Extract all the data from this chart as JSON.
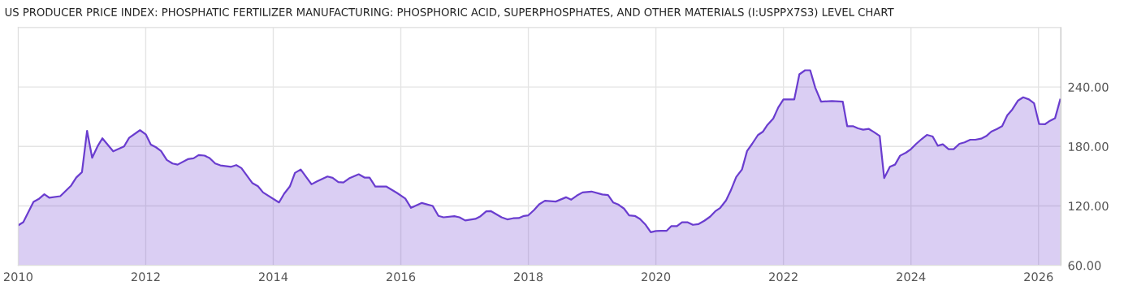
{
  "chart_data": {
    "type": "area",
    "title": "US PRODUCER PRICE INDEX: PHOSPHATIC FERTILIZER MANUFACTURING: PHOSPHORIC ACID, SUPERPHOSPHATES, AND OTHER MATERIALS (I:USPPX7S3) LEVEL CHART",
    "x": [
      2010.0,
      2010.08,
      2010.24,
      2010.32,
      2010.41,
      2010.49,
      2010.66,
      2010.83,
      2010.91,
      2011.0,
      2011.08,
      2011.16,
      2011.25,
      2011.32,
      2011.49,
      2011.66,
      2011.74,
      2011.91,
      2012.0,
      2012.08,
      2012.16,
      2012.24,
      2012.33,
      2012.42,
      2012.5,
      2012.66,
      2012.75,
      2012.83,
      2012.92,
      2013.0,
      2013.09,
      2013.17,
      2013.34,
      2013.42,
      2013.5,
      2013.67,
      2013.76,
      2013.84,
      2014.09,
      2014.17,
      2014.26,
      2014.34,
      2014.43,
      2014.6,
      2014.68,
      2014.85,
      2014.93,
      2015.02,
      2015.1,
      2015.19,
      2015.34,
      2015.43,
      2015.51,
      2015.6,
      2015.77,
      2015.94,
      2016.07,
      2016.16,
      2016.33,
      2016.5,
      2016.59,
      2016.67,
      2016.84,
      2016.92,
      2017.01,
      2017.17,
      2017.25,
      2017.34,
      2017.41,
      2017.58,
      2017.67,
      2017.76,
      2017.85,
      2017.93,
      2018.0,
      2018.09,
      2018.17,
      2018.26,
      2018.43,
      2018.59,
      2018.67,
      2018.76,
      2018.85,
      2018.99,
      2019.16,
      2019.25,
      2019.33,
      2019.41,
      2019.5,
      2019.58,
      2019.67,
      2019.75,
      2019.84,
      2019.92,
      2020.0,
      2020.08,
      2020.17,
      2020.24,
      2020.33,
      2020.41,
      2020.5,
      2020.58,
      2020.67,
      2020.76,
      2020.85,
      2020.93,
      2021.01,
      2021.1,
      2021.17,
      2021.26,
      2021.35,
      2021.43,
      2021.51,
      2021.6,
      2021.68,
      2021.75,
      2021.84,
      2021.92,
      2022.0,
      2022.17,
      2022.25,
      2022.34,
      2022.42,
      2022.5,
      2022.59,
      2022.76,
      2022.93,
      2023.0,
      2023.09,
      2023.17,
      2023.25,
      2023.34,
      2023.42,
      2023.51,
      2023.58,
      2023.67,
      2023.75,
      2023.83,
      2023.92,
      2024.0,
      2024.08,
      2024.17,
      2024.25,
      2024.34,
      2024.42,
      2024.5,
      2024.59,
      2024.67,
      2024.76,
      2024.84,
      2024.93,
      2025.01,
      2025.1,
      2025.18,
      2025.26,
      2025.35,
      2025.43,
      2025.51,
      2025.59,
      2025.68,
      2025.76,
      2025.85,
      2025.93,
      2026.01,
      2026.1,
      2026.18,
      2026.26,
      2026.34
    ],
    "series": [
      {
        "color": "#6a3dcf",
        "values": [
          100.4,
          103.6,
          124.1,
          126.9,
          131.7,
          128.2,
          129.8,
          140.5,
          148.6,
          154.1,
          195.8,
          168.6,
          180.8,
          188.2,
          175.1,
          180,
          188.7,
          196.4,
          192.3,
          181.9,
          179.2,
          175.4,
          166.4,
          162.8,
          161.7,
          167.2,
          168.0,
          171.3,
          170.8,
          168.3,
          162.8,
          160.9,
          159.5,
          161.2,
          158.2,
          143.2,
          139.9,
          133.6,
          123.5,
          132.3,
          139.6,
          153.3,
          156.8,
          141.8,
          144.5,
          149.7,
          148.4,
          144.0,
          143.7,
          147.8,
          151.9,
          148.6,
          148.6,
          139.6,
          139.6,
          133.1,
          127.4,
          118.1,
          123.0,
          120.0,
          109.9,
          108.5,
          109.6,
          108.5,
          105.3,
          106.9,
          109.6,
          114.5,
          114.8,
          108.5,
          106.4,
          107.5,
          107.7,
          109.9,
          110.5,
          115.9,
          121.6,
          125.2,
          124.4,
          128.7,
          126.3,
          130.4,
          133.6,
          134.5,
          131.5,
          130.9,
          123.5,
          121.4,
          117.3,
          110.5,
          109.9,
          106.9,
          100.9,
          93.5,
          94.6,
          94.9,
          94.9,
          99.5,
          99.5,
          103.4,
          103.4,
          100.9,
          101.7,
          105.0,
          109.1,
          114.5,
          118.1,
          125.5,
          134.9,
          149.2,
          156.8,
          175.4,
          182.7,
          191.5,
          195.0,
          201.8,
          208.1,
          219.5,
          227.5,
          227.5,
          252.8,
          256.9,
          256.9,
          239.2,
          225.3,
          225.8,
          225.3,
          200.5,
          200.5,
          198.3,
          196.9,
          197.7,
          194.5,
          190.6,
          148.1,
          159.5,
          161.7,
          170.7,
          173.7,
          177.3,
          182.5,
          187.6,
          191.7,
          190.1,
          180.8,
          182.2,
          177.3,
          177.3,
          182.7,
          184.1,
          186.8,
          186.8,
          187.9,
          190.4,
          195.0,
          197.7,
          200.5,
          211.4,
          217.4,
          226.4,
          229.6,
          227.5,
          223.6,
          202.6,
          202.4,
          205.9,
          208.6,
          227.2
        ]
      }
    ],
    "xlim": [
      2010.0,
      2026.35
    ],
    "xticks": [
      2010,
      2012,
      2014,
      2016,
      2018,
      2020,
      2022,
      2024,
      2026
    ],
    "ylim": [
      60,
      300
    ],
    "yticks": [
      {
        "value": 60,
        "label": "60.00"
      },
      {
        "value": 120,
        "label": "120.00"
      },
      {
        "value": 180,
        "label": "180.00"
      },
      {
        "value": 240,
        "label": "240.00"
      }
    ],
    "grid": true,
    "legend": false,
    "marker": "none",
    "line_style": "solid"
  }
}
